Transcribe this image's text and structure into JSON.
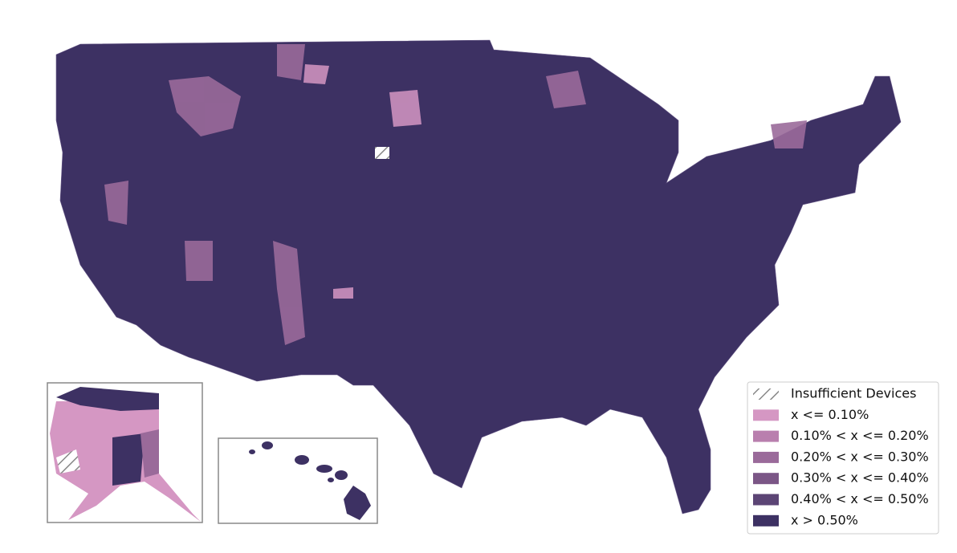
{
  "legend": {
    "items": [
      {
        "label": "Insufficient Devices"
      },
      {
        "label": "x <= 0.10%",
        "color": "#d597c3"
      },
      {
        "label": "0.10% < x <= 0.20%",
        "color": "#b97fae"
      },
      {
        "label": "0.20% < x <= 0.30%",
        "color": "#9a6a9a"
      },
      {
        "label": "0.30% < x <= 0.40%",
        "color": "#7b5686"
      },
      {
        "label": "0.40% < x <= 0.50%",
        "color": "#5c4575"
      },
      {
        "label": "x > 0.50%",
        "color": "#3d3163"
      }
    ]
  }
}
